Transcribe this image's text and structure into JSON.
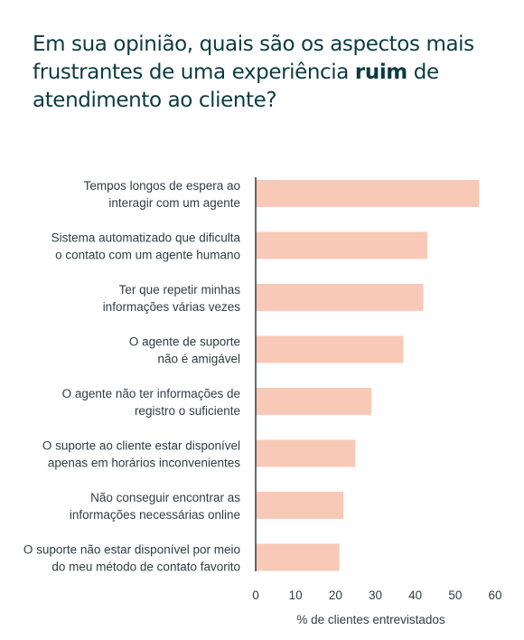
{
  "title": {
    "part1": "Em sua opinião, quais são os aspectos mais frustrantes de uma experiência ",
    "emphasis": "ruim",
    "part2": " de atendimento ao cliente?"
  },
  "chart_data": {
    "type": "bar",
    "orientation": "horizontal",
    "categories": [
      [
        "Tempos longos de espera ao",
        "interagir com um agente"
      ],
      [
        "Sistema automatizado que dificulta",
        "o contato com um agente humano"
      ],
      [
        "Ter que repetir minhas",
        "informações várias vezes"
      ],
      [
        "O agente de suporte",
        "não é amigável"
      ],
      [
        "O agente não ter informações de",
        "registro o suficiente"
      ],
      [
        "O suporte ao cliente estar disponível",
        "apenas em horários inconvenientes"
      ],
      [
        "Não conseguir encontrar as",
        "informações necessárias online"
      ],
      [
        "O suporte não estar disponível por meio",
        "do meu método de contato favorito"
      ]
    ],
    "values": [
      56,
      43,
      42,
      37,
      29,
      25,
      22,
      21
    ],
    "xlim": [
      0,
      60
    ],
    "xticks": [
      0,
      10,
      20,
      30,
      40,
      50,
      60
    ],
    "xlabel": "% de clientes entrevistados",
    "ylabel": "",
    "grid": false,
    "bar_color": "#f8c9b6",
    "axis_color": "#2f3d44"
  }
}
